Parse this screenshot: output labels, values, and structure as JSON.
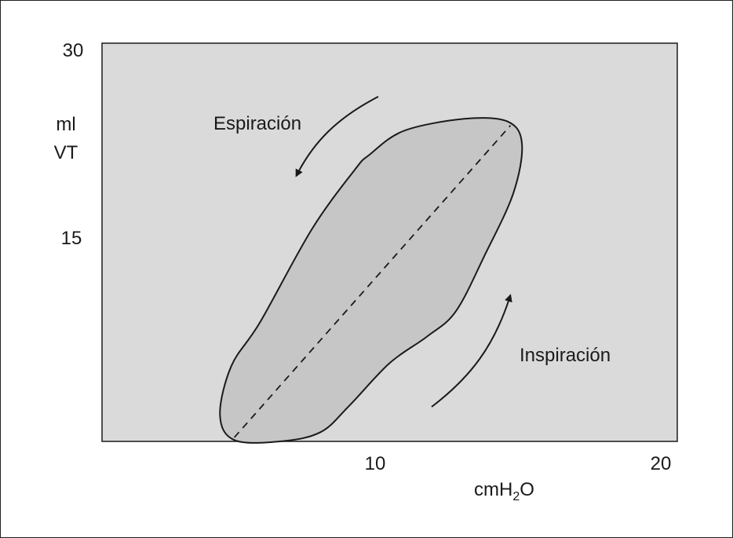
{
  "chart_data": {
    "type": "line",
    "title": "",
    "ylabel": [
      "ml",
      "VT"
    ],
    "xlabel": {
      "base": "cmH",
      "sub": "2",
      "tail": "O"
    },
    "xlim": [
      0,
      20
    ],
    "ylim": [
      0,
      30
    ],
    "x_ticks": [
      10,
      20
    ],
    "y_ticks": [
      15,
      30
    ],
    "grid": false,
    "legend": "none",
    "colors": {
      "plot_background": "#dadada",
      "loop_fill": "#c6c6c6",
      "line": "#1a1a1a"
    },
    "series": [
      {
        "kind": "pressure-volume-loop",
        "x": [
          4.6,
          4.1,
          4.5,
          5.5,
          7.3,
          8.8,
          9.3,
          10.5,
          12.6,
          14.1,
          14.6,
          14.3,
          13.3,
          12.3,
          11.3,
          10.0,
          8.6,
          7.6,
          6.2,
          4.6
        ],
        "y": [
          0.1,
          2.0,
          5.7,
          9.0,
          16.0,
          20.5,
          21.6,
          23.4,
          24.3,
          24.1,
          22.4,
          18.7,
          14.0,
          9.8,
          7.9,
          5.9,
          2.7,
          0.7,
          0.0,
          0.1
        ]
      },
      {
        "kind": "dashed-reference-line",
        "x": [
          4.6,
          14.2
        ],
        "y": [
          0.3,
          23.8
        ]
      }
    ],
    "annotations": [
      {
        "text": "Espiración",
        "arrow": "counterclockwise-down-left"
      },
      {
        "text": "Inspiración",
        "arrow": "up-right"
      }
    ]
  }
}
